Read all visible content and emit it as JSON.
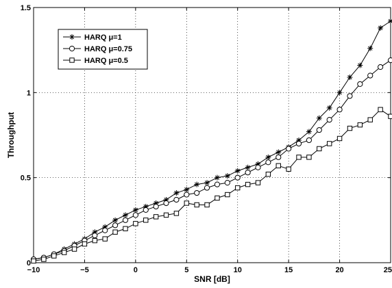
{
  "chart_data": {
    "type": "line",
    "title": "",
    "xlabel": "SNR [dB]",
    "ylabel": "Throughput",
    "xlim": [
      -10,
      25
    ],
    "ylim": [
      0,
      1.5
    ],
    "xticks": [
      -10,
      -5,
      0,
      5,
      10,
      15,
      20,
      25
    ],
    "yticks": [
      0,
      0.5,
      1,
      1.5
    ],
    "xtick_labels": [
      "−10",
      "−5",
      "0",
      "5",
      "10",
      "15",
      "20",
      "25"
    ],
    "ytick_labels": [
      "0",
      "0.5",
      "1",
      "1.5"
    ],
    "grid": true,
    "legend_position": "top-left",
    "x": [
      -10,
      -9,
      -8,
      -7,
      -6,
      -5,
      -4,
      -3,
      -2,
      -1,
      0,
      1,
      2,
      3,
      4,
      5,
      6,
      7,
      8,
      9,
      10,
      11,
      12,
      13,
      14,
      15,
      16,
      17,
      18,
      19,
      20,
      21,
      22,
      23,
      24,
      25
    ],
    "series": [
      {
        "name": "HARQ μ=1",
        "marker": "star",
        "values": [
          0.02,
          0.03,
          0.05,
          0.08,
          0.11,
          0.14,
          0.18,
          0.21,
          0.25,
          0.28,
          0.31,
          0.33,
          0.35,
          0.37,
          0.41,
          0.43,
          0.46,
          0.47,
          0.5,
          0.51,
          0.54,
          0.56,
          0.58,
          0.62,
          0.65,
          0.68,
          0.72,
          0.77,
          0.85,
          0.91,
          1.0,
          1.09,
          1.16,
          1.26,
          1.38,
          1.42
        ]
      },
      {
        "name": "HARQ μ=0.75",
        "marker": "circle",
        "values": [
          0.02,
          0.03,
          0.05,
          0.07,
          0.1,
          0.13,
          0.16,
          0.19,
          0.22,
          0.25,
          0.28,
          0.31,
          0.33,
          0.35,
          0.37,
          0.4,
          0.41,
          0.44,
          0.46,
          0.47,
          0.5,
          0.53,
          0.56,
          0.59,
          0.62,
          0.67,
          0.7,
          0.72,
          0.78,
          0.84,
          0.9,
          0.98,
          1.05,
          1.1,
          1.15,
          1.19
        ]
      },
      {
        "name": "HARQ μ=0.5",
        "marker": "square",
        "values": [
          0.01,
          0.02,
          0.04,
          0.06,
          0.08,
          0.11,
          0.13,
          0.14,
          0.18,
          0.2,
          0.23,
          0.25,
          0.27,
          0.28,
          0.29,
          0.35,
          0.34,
          0.34,
          0.38,
          0.4,
          0.44,
          0.46,
          0.47,
          0.52,
          0.57,
          0.55,
          0.62,
          0.62,
          0.67,
          0.7,
          0.73,
          0.79,
          0.81,
          0.84,
          0.9,
          0.86
        ]
      }
    ]
  }
}
